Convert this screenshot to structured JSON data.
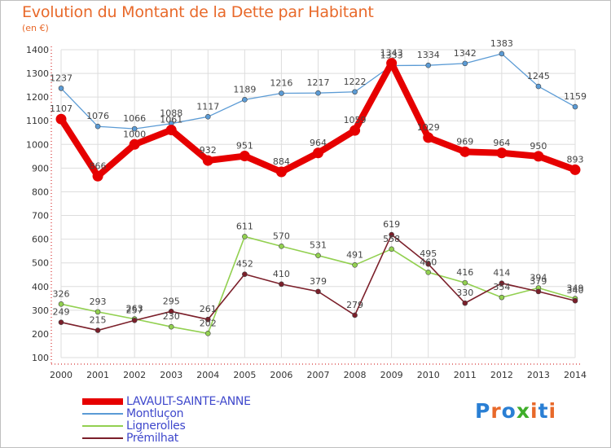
{
  "title": "Evolution du Montant de la Dette par Habitant",
  "subtitle": "(en €)",
  "logo": {
    "letters": [
      {
        "char": "P",
        "color": "#2a7fd4"
      },
      {
        "char": "r",
        "color": "#e8692a"
      },
      {
        "char": "o",
        "color": "#2a7fd4"
      },
      {
        "char": "x",
        "color": "#3fae2a"
      },
      {
        "char": "i",
        "color": "#e8692a"
      },
      {
        "char": "t",
        "color": "#2a7fd4"
      },
      {
        "char": "i",
        "color": "#e8692a"
      }
    ]
  },
  "chart_data": {
    "type": "line",
    "title": "Evolution du Montant de la Dette par Habitant",
    "subtitle": "(en €)",
    "x": [
      "2000",
      "2001",
      "2002",
      "2003",
      "2004",
      "2005",
      "2006",
      "2007",
      "2008",
      "2009",
      "2010",
      "2011",
      "2012",
      "2013",
      "2014"
    ],
    "ylim": [
      100,
      1400
    ],
    "yticks": [
      100,
      200,
      300,
      400,
      500,
      600,
      700,
      800,
      900,
      1000,
      1100,
      1200,
      1300,
      1400
    ],
    "grid": true,
    "legend_position": "bottom-left",
    "series": [
      {
        "name": "LAVAULT-SAINTE-ANNE",
        "color": "#e60000",
        "emphasis": true,
        "values": [
          1107,
          866,
          1000,
          1061,
          932,
          951,
          884,
          964,
          1059,
          1343,
          1029,
          969,
          964,
          950,
          893
        ],
        "labels": [
          "1107",
          "866",
          "1000",
          "1061",
          "932",
          "951",
          "884",
          "964",
          "1059",
          "1343",
          "1029",
          "969",
          "964",
          "950",
          "893"
        ]
      },
      {
        "name": "Montluçon",
        "color": "#5b9bd5",
        "values": [
          1237,
          1076,
          1066,
          1088,
          1117,
          1189,
          1216,
          1217,
          1222,
          1333,
          1334,
          1342,
          1383,
          1245,
          1159
        ],
        "labels": [
          "1237",
          "1076",
          "1066",
          "1088",
          "1117",
          "1189",
          "1216",
          "1217",
          "1222",
          "1333",
          "1334",
          "1342",
          "1383",
          "1245",
          "1159"
        ]
      },
      {
        "name": "Lignerolles",
        "color": "#92d050",
        "values": [
          326,
          293,
          263,
          230,
          202,
          611,
          570,
          531,
          491,
          558,
          460,
          416,
          354,
          394,
          349
        ],
        "labels": [
          "326",
          "293",
          "263",
          "230",
          "202",
          "611",
          "570",
          "531",
          "491",
          "558",
          "460",
          "416",
          "354",
          "394",
          "349"
        ]
      },
      {
        "name": "Prémilhat",
        "color": "#7b1f2a",
        "values": [
          249,
          215,
          257,
          295,
          261,
          452,
          410,
          379,
          279,
          619,
          495,
          330,
          414,
          379,
          340
        ],
        "labels": [
          "249",
          "215",
          "257",
          "295",
          "261",
          "452",
          "410",
          "379",
          "279",
          "619",
          "495",
          "330",
          "414",
          "379",
          "340"
        ]
      }
    ]
  }
}
